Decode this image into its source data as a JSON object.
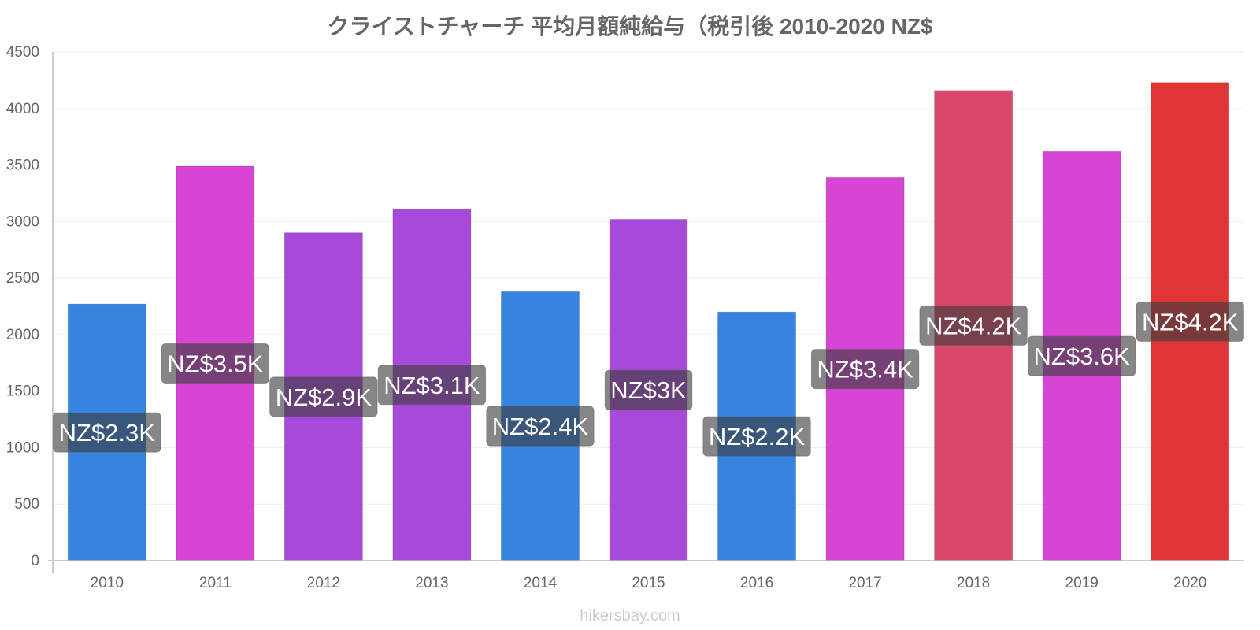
{
  "chart_data": {
    "type": "bar",
    "title": "クライストチャーチ 平均月額純給与（税引後 2010-2020 NZ$",
    "xlabel": "",
    "ylabel": "",
    "ylim": [
      0,
      4500
    ],
    "yticks": [
      0,
      500,
      1000,
      1500,
      2000,
      2500,
      3000,
      3500,
      4000,
      4500
    ],
    "grid": true,
    "categories": [
      "2010",
      "2011",
      "2012",
      "2013",
      "2014",
      "2015",
      "2016",
      "2017",
      "2018",
      "2019",
      "2020"
    ],
    "values": [
      2270,
      3490,
      2900,
      3110,
      2380,
      3020,
      2200,
      3390,
      4160,
      3620,
      4230
    ],
    "data_labels": [
      "NZ$2.3K",
      "NZ$3.5K",
      "NZ$2.9K",
      "NZ$3.1K",
      "NZ$2.4K",
      "NZ$3K",
      "NZ$2.2K",
      "NZ$3.4K",
      "NZ$4.2K",
      "NZ$3.6K",
      "NZ$4.2K"
    ],
    "colors": [
      "#3584e0",
      "#d646d3",
      "#a84ad9",
      "#a84ad9",
      "#3584e0",
      "#a84ad9",
      "#3584e0",
      "#d646d3",
      "#d9476a",
      "#d646d3",
      "#e03535"
    ],
    "watermark": "hikersbay.com"
  }
}
